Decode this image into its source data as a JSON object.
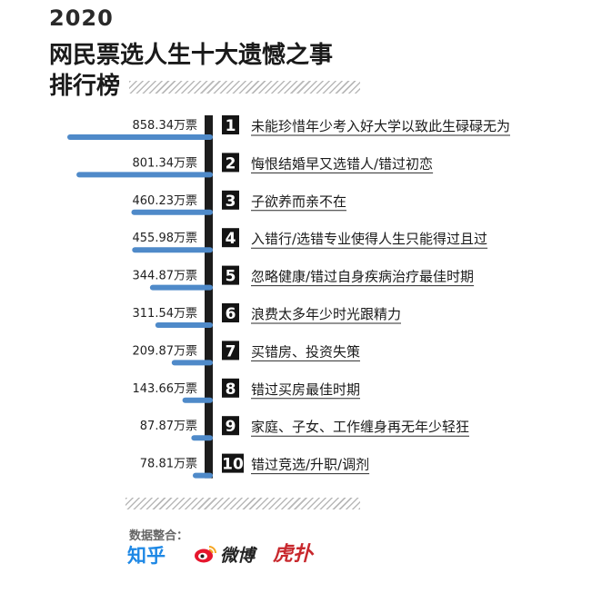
{
  "header": {
    "year": "2020",
    "title_line1": "网民票选人生十大遗憾之事",
    "title_line2": "排行榜"
  },
  "footer": {
    "source_label": "数据整合：",
    "logos": {
      "zhihu": "知乎",
      "weibo": "微博",
      "hupu": "虎扑"
    }
  },
  "colors": {
    "bar": "#4f8ac9",
    "trunk": "#1c1c1c"
  },
  "chart_data": {
    "type": "bar",
    "orientation": "horizontal",
    "unit": "万票",
    "categories": [
      "未能珍惜年少考入好大学以致此生碌碌无为",
      "悔恨结婚早又选错人/错过初恋",
      "子欲养而亲不在",
      "入错行/选错专业使得人生只能得过且过",
      "忽略健康/错过自身疾病治疗最佳时期",
      "浪费太多年少时光跟精力",
      "买错房、投资失策",
      "错过买房最佳时期",
      "家庭、子女、工作缠身再无年少轻狂",
      "错过竞选/升职/调剂"
    ],
    "ranks": [
      "1",
      "2",
      "3",
      "4",
      "5",
      "6",
      "7",
      "8",
      "9",
      "10"
    ],
    "values": [
      858.34,
      801.34,
      460.23,
      455.98,
      344.87,
      311.54,
      209.87,
      143.66,
      87.87,
      78.81
    ],
    "value_labels": [
      "858.34万票",
      "801.34万票",
      "460.23万票",
      "455.98万票",
      "344.87万票",
      "311.54万票",
      "209.87万票",
      "143.66万票",
      "87.87万票",
      "78.81万票"
    ]
  }
}
